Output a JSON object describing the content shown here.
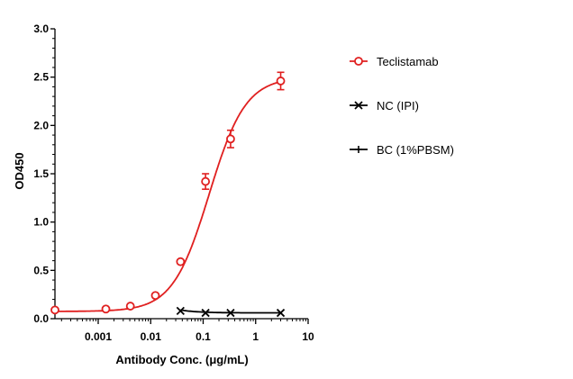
{
  "chart_data": {
    "type": "scatter",
    "xlabel": "Antibody Conc. (μg/mL)",
    "ylabel": "OD450",
    "xscale": "log",
    "xlim": [
      0.00015,
      10
    ],
    "ylim": [
      0,
      3.0
    ],
    "x_ticks": [
      {
        "value": 0.001,
        "label": "0.001"
      },
      {
        "value": 0.01,
        "label": "0.01"
      },
      {
        "value": 0.1,
        "label": "0.1"
      },
      {
        "value": 1,
        "label": "1"
      },
      {
        "value": 10,
        "label": "10"
      }
    ],
    "y_ticks": [
      {
        "value": 0,
        "label": "0.0"
      },
      {
        "value": 0.5,
        "label": "0.5"
      },
      {
        "value": 1.0,
        "label": "1.0"
      },
      {
        "value": 1.5,
        "label": "1.5"
      },
      {
        "value": 2.0,
        "label": "2.0"
      },
      {
        "value": 2.5,
        "label": "2.5"
      },
      {
        "value": 3.0,
        "label": "3.0"
      }
    ],
    "legend_position": "right",
    "series": [
      {
        "name": "Teclistamab",
        "color": "#e02020",
        "marker": "open-circle",
        "fit": {
          "bottom": 0.075,
          "top": 2.5,
          "ec50": 0.13,
          "hill": 1.25
        },
        "points": [
          {
            "x": 0.00015,
            "y": 0.09,
            "err": 0.01
          },
          {
            "x": 0.0014,
            "y": 0.1,
            "err": 0.01
          },
          {
            "x": 0.0041,
            "y": 0.13,
            "err": 0.01
          },
          {
            "x": 0.0123,
            "y": 0.24,
            "err": 0.02
          },
          {
            "x": 0.037,
            "y": 0.59,
            "err": 0.02
          },
          {
            "x": 0.111,
            "y": 1.42,
            "err": 0.08
          },
          {
            "x": 0.333,
            "y": 1.86,
            "err": 0.09
          },
          {
            "x": 3.0,
            "y": 2.46,
            "err": 0.09
          }
        ]
      },
      {
        "name": "NC (IPI)",
        "color": "#000000",
        "marker": "x",
        "fit": {
          "type": "decay",
          "plateau": 0.06,
          "start": 0.09
        },
        "points": [
          {
            "x": 0.037,
            "y": 0.08
          },
          {
            "x": 0.111,
            "y": 0.06
          },
          {
            "x": 0.333,
            "y": 0.06
          },
          {
            "x": 3.0,
            "y": 0.06
          }
        ]
      },
      {
        "name": "BC (1%PBSM)",
        "color": "#000000",
        "marker": "plus",
        "points": []
      }
    ]
  }
}
